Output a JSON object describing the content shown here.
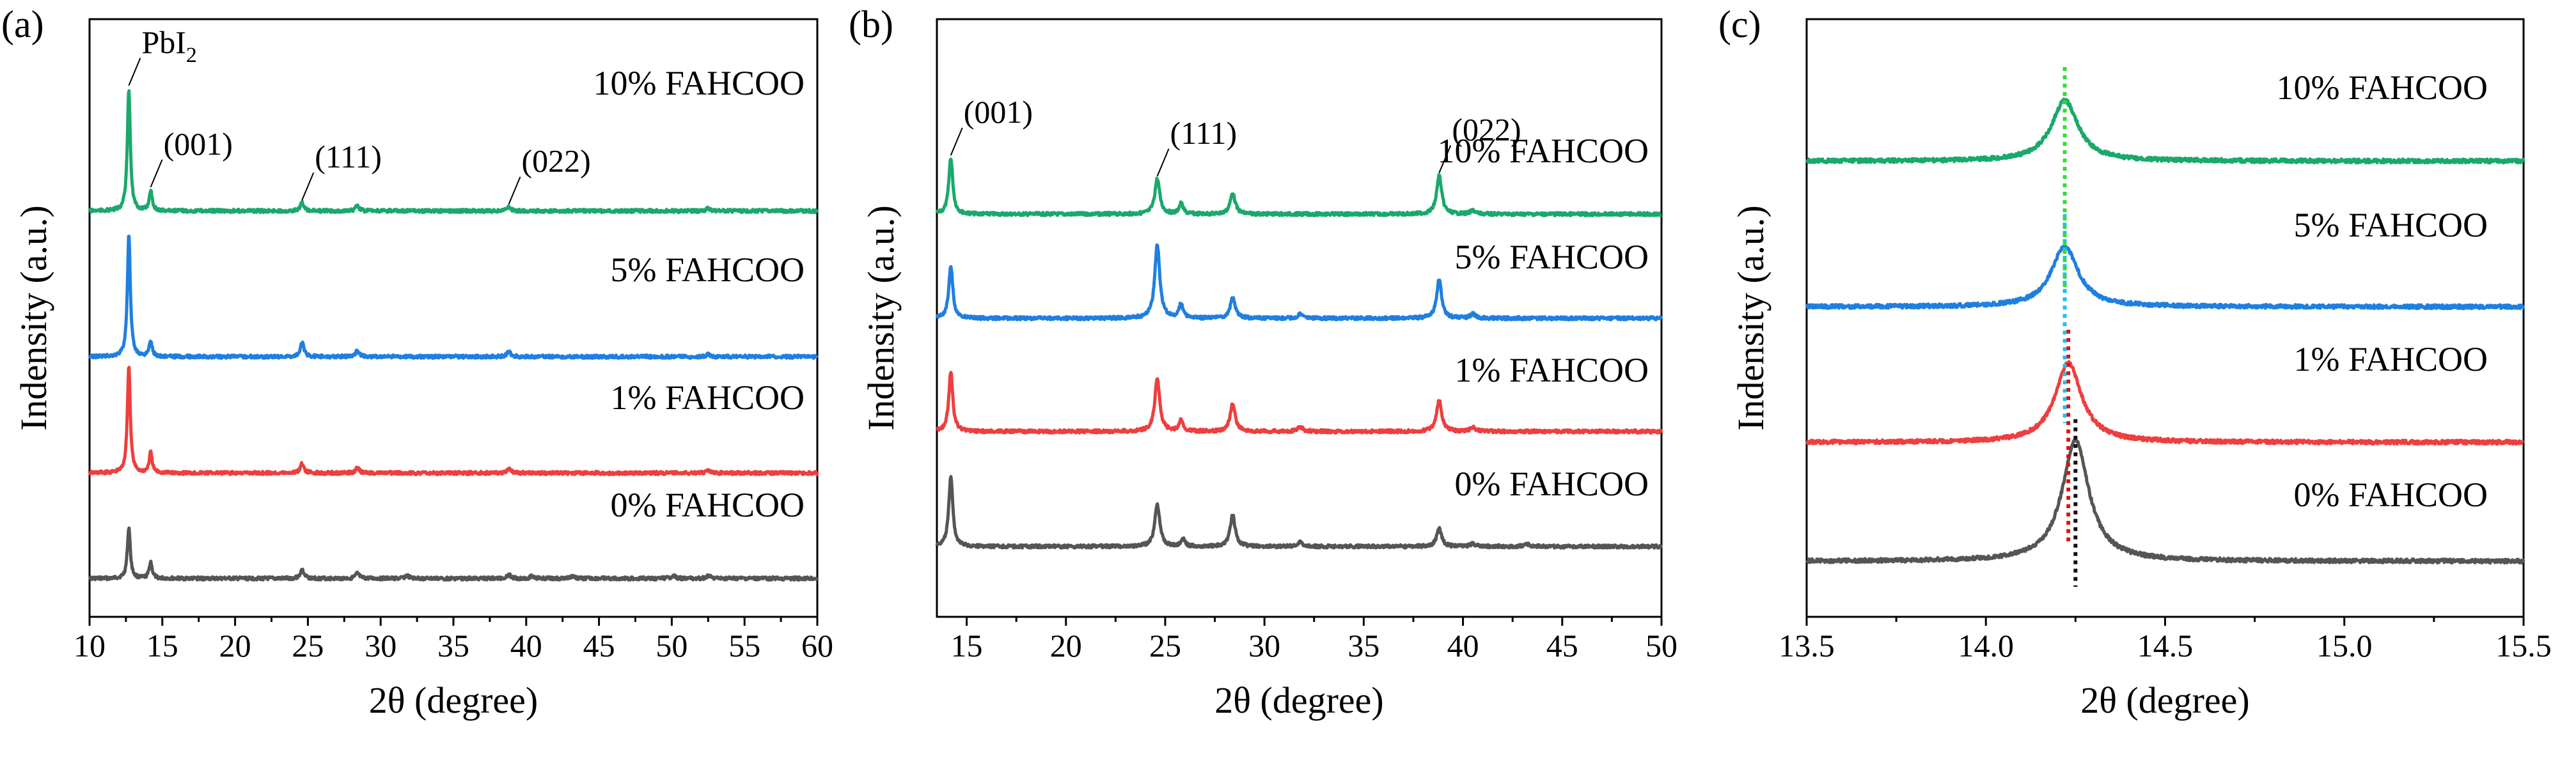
{
  "chart_data": [
    {
      "type": "line",
      "panel_label": "(a)",
      "xlabel": "2θ (degree)",
      "ylabel": "Indensity (a.u.)",
      "xlim": [
        10,
        60
      ],
      "xticks": [
        "10",
        "15",
        "20",
        "25",
        "30",
        "35",
        "40",
        "45",
        "50",
        "55",
        "60"
      ],
      "yaxis_ticks": "none",
      "peak_labels": [
        {
          "text": "PbI",
          "sub": "2",
          "x": 12.7
        },
        {
          "text": "(001)",
          "x": 14.2
        },
        {
          "text": "(111)",
          "x": 24.6
        },
        {
          "text": "(022)",
          "x": 38.8
        }
      ],
      "series": [
        {
          "name": "0% FAHCOO",
          "color": "#555555",
          "peaks": [
            [
              12.7,
              1.0,
              0.12
            ],
            [
              14.2,
              0.33,
              0.12
            ],
            [
              24.6,
              0.17,
              0.15
            ],
            [
              28.4,
              0.1,
              0.15
            ],
            [
              31.8,
              0.06,
              0.15
            ],
            [
              38.8,
              0.08,
              0.15
            ],
            [
              40.4,
              0.05,
              0.15
            ],
            [
              43.2,
              0.05,
              0.15
            ],
            [
              50.1,
              0.06,
              0.15
            ],
            [
              52.5,
              0.06,
              0.15
            ]
          ]
        },
        {
          "name": "1% FAHCOO",
          "color": "#ee3e3e",
          "peaks": [
            [
              12.7,
              2.1,
              0.12
            ],
            [
              14.2,
              0.4,
              0.12
            ],
            [
              24.6,
              0.18,
              0.15
            ],
            [
              28.4,
              0.1,
              0.15
            ],
            [
              38.8,
              0.1,
              0.15
            ],
            [
              52.5,
              0.05,
              0.15
            ]
          ]
        },
        {
          "name": "5% FAHCOO",
          "color": "#1f7fe0",
          "peaks": [
            [
              12.7,
              2.4,
              0.12
            ],
            [
              14.2,
              0.3,
              0.12
            ],
            [
              24.6,
              0.28,
              0.15
            ],
            [
              28.4,
              0.12,
              0.15
            ],
            [
              38.8,
              0.1,
              0.15
            ],
            [
              52.5,
              0.05,
              0.15
            ]
          ]
        },
        {
          "name": "10% FAHCOO",
          "color": "#1aa86b",
          "peaks": [
            [
              12.7,
              2.4,
              0.12
            ],
            [
              14.2,
              0.4,
              0.12
            ],
            [
              24.6,
              0.16,
              0.15
            ],
            [
              28.4,
              0.1,
              0.15
            ],
            [
              38.8,
              0.08,
              0.15
            ],
            [
              52.5,
              0.05,
              0.15
            ]
          ]
        }
      ]
    },
    {
      "type": "line",
      "panel_label": "(b)",
      "xlabel": "2θ (degree)",
      "ylabel": "Indensity (a.u.)",
      "xlim": [
        13.5,
        50
      ],
      "xticks": [
        "15",
        "20",
        "25",
        "30",
        "35",
        "40",
        "45",
        "50"
      ],
      "yaxis_ticks": "none",
      "peak_labels": [
        {
          "text": "(001)",
          "x": 14.2
        },
        {
          "text": "(111)",
          "x": 24.6
        },
        {
          "text": "(022)",
          "x": 38.8
        }
      ],
      "series": [
        {
          "name": "0% FAHCOO",
          "color": "#555555",
          "peaks": [
            [
              14.2,
              1.0,
              0.12
            ],
            [
              24.6,
              0.6,
              0.15
            ],
            [
              25.9,
              0.1,
              0.12
            ],
            [
              28.4,
              0.45,
              0.15
            ],
            [
              31.8,
              0.06,
              0.15
            ],
            [
              38.8,
              0.25,
              0.15
            ],
            [
              40.5,
              0.04,
              0.15
            ],
            [
              43.2,
              0.04,
              0.15
            ]
          ]
        },
        {
          "name": "1% FAHCOO",
          "color": "#ee3e3e",
          "peaks": [
            [
              14.2,
              0.85,
              0.12
            ],
            [
              24.6,
              0.75,
              0.15
            ],
            [
              25.8,
              0.15,
              0.12
            ],
            [
              28.4,
              0.4,
              0.15
            ],
            [
              31.8,
              0.07,
              0.15
            ],
            [
              38.8,
              0.45,
              0.15
            ],
            [
              40.5,
              0.06,
              0.15
            ]
          ]
        },
        {
          "name": "5% FAHCOO",
          "color": "#1f7fe0",
          "peaks": [
            [
              14.2,
              0.75,
              0.12
            ],
            [
              24.6,
              1.05,
              0.15
            ],
            [
              25.8,
              0.2,
              0.12
            ],
            [
              28.4,
              0.3,
              0.15
            ],
            [
              31.8,
              0.06,
              0.15
            ],
            [
              38.8,
              0.55,
              0.15
            ],
            [
              40.5,
              0.06,
              0.15
            ]
          ]
        },
        {
          "name": "10% FAHCOO",
          "color": "#1aa86b",
          "peaks": [
            [
              14.2,
              0.8,
              0.12
            ],
            [
              24.6,
              0.5,
              0.15
            ],
            [
              25.8,
              0.15,
              0.12
            ],
            [
              28.4,
              0.3,
              0.15
            ],
            [
              38.8,
              0.55,
              0.15
            ],
            [
              40.5,
              0.05,
              0.15
            ]
          ]
        }
      ]
    },
    {
      "type": "line",
      "panel_label": "(c)",
      "xlabel": "2θ (degree)",
      "ylabel": "Indensity (a.u.)",
      "xlim": [
        13.5,
        15.5
      ],
      "xticks": [
        "13.5",
        "14.0",
        "14.5",
        "15.0",
        "15.5"
      ],
      "yaxis_ticks": "none",
      "series": [
        {
          "name": "0% FAHCOO",
          "color": "#555555",
          "peak_center": 14.25,
          "peak_height": 1.0,
          "marker_color": "#111111",
          "peaks": [
            [
              14.25,
              1.0,
              0.045
            ]
          ]
        },
        {
          "name": "1% FAHCOO",
          "color": "#ee3e3e",
          "peak_center": 14.23,
          "peak_height": 0.65,
          "marker_color": "#dd1111",
          "peaks": [
            [
              14.23,
              0.65,
              0.045
            ]
          ]
        },
        {
          "name": "5% FAHCOO",
          "color": "#1f7fe0",
          "peak_center": 14.22,
          "peak_height": 0.5,
          "marker_color": "#1ec0ee",
          "peaks": [
            [
              14.22,
              0.5,
              0.045
            ]
          ]
        },
        {
          "name": "10% FAHCOO",
          "color": "#1aa86b",
          "peak_center": 14.22,
          "peak_height": 0.5,
          "marker_color": "#33dd33",
          "peaks": [
            [
              14.22,
              0.5,
              0.045
            ]
          ]
        }
      ]
    }
  ]
}
